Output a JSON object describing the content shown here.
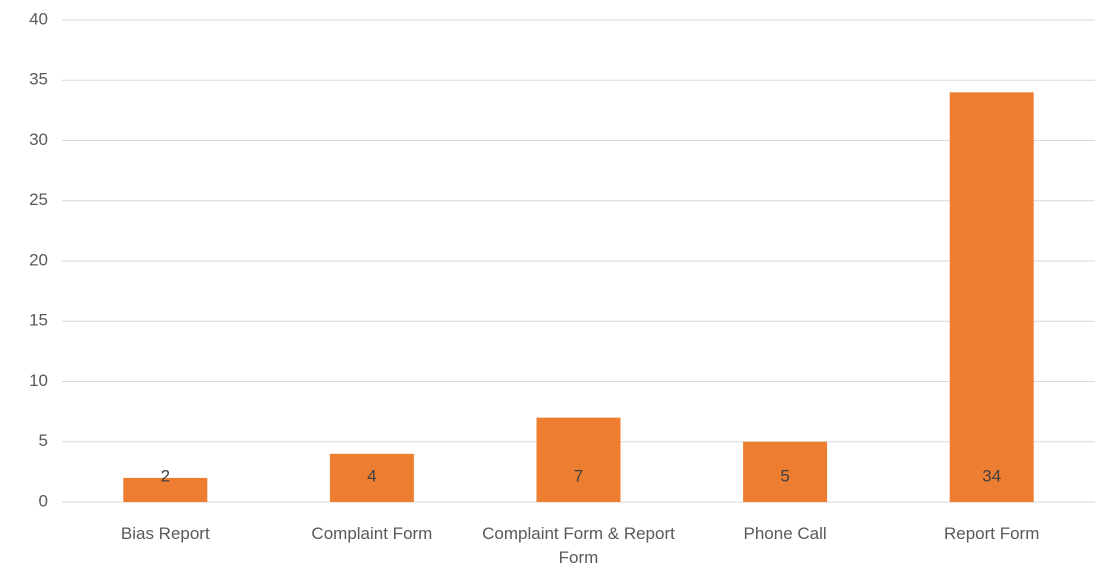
{
  "chart_data": {
    "type": "bar",
    "categories": [
      "Bias Report",
      "Complaint Form",
      "Complaint Form & Report Form",
      "Phone Call",
      "Report Form"
    ],
    "values": [
      2,
      4,
      7,
      5,
      34
    ],
    "color": "#ed7d31",
    "ylim": [
      0,
      40
    ],
    "yticks": [
      0,
      5,
      10,
      15,
      20,
      25,
      30,
      35,
      40
    ],
    "grid": true
  }
}
